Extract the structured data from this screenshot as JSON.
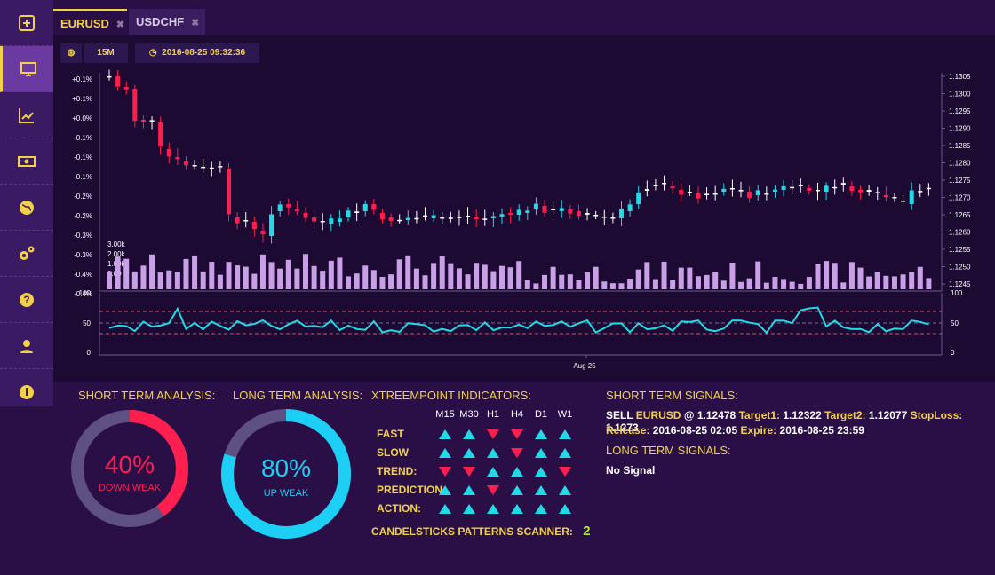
{
  "tabs": [
    {
      "label": "EURUSD",
      "close": "⌘"
    },
    {
      "label": "USDCHF",
      "close": "⌘"
    }
  ],
  "toolbar": {
    "timeframe": "15M",
    "datetime": "2016-08-25 09:32:36"
  },
  "sidebar": {
    "items": [
      "plus-square-icon",
      "monitor-icon",
      "line-chart-icon",
      "money-icon",
      "globe-icon",
      "gears-icon",
      "question-icon",
      "user-icon",
      "info-icon"
    ]
  },
  "chart_data": {
    "type": "candlestick",
    "left_axis_ticks": [
      "+0.1%",
      "+0.1%",
      "+0.0%",
      "-0.1%",
      "-0.1%",
      "-0.1%",
      "-0.2%",
      "-0.2%",
      "-0.3%",
      "-0.3%",
      "-0.4%",
      "-0.4%"
    ],
    "right_axis_ticks": [
      "1.1305",
      "1.1300",
      "1.1295",
      "1.1290",
      "1.1285",
      "1.1280",
      "1.1275",
      "1.1270",
      "1.1265",
      "1.1260",
      "1.1255",
      "1.1250",
      "1.1245"
    ],
    "volume_ticks": [
      "3.00k",
      "2.00k",
      "1.00k",
      "0.00"
    ],
    "oscillator_ticks": [
      "100",
      "50",
      "0"
    ],
    "x_label": "Aug 25",
    "colors": {
      "up": "#22d9e6",
      "down": "#ff1f4e",
      "volume": "#c9a0e8",
      "osc": "#22d9e6"
    }
  },
  "analysis": {
    "short_title": "SHORT TERM ANALYSIS:",
    "short_pct": "40%",
    "short_sub": "DOWN WEAK",
    "short_value": 0.4,
    "long_title": "LONG TERM ANALYSIS:",
    "long_pct": "80%",
    "long_sub": "UP WEAK",
    "long_value": 0.8
  },
  "indicators": {
    "title": "XTREEMPOINT INDICATORS:",
    "cols": [
      "M15",
      "M30",
      "H1",
      "H4",
      "D1",
      "W1"
    ],
    "rows": [
      {
        "label": "FAST",
        "dirs": [
          "up",
          "up",
          "down",
          "down",
          "up",
          "up"
        ]
      },
      {
        "label": "SLOW",
        "dirs": [
          "up",
          "up",
          "up",
          "down",
          "up",
          "up"
        ]
      },
      {
        "label": "TREND:",
        "dirs": [
          "down",
          "down",
          "up",
          "up",
          "up",
          "down"
        ]
      },
      {
        "label": "PREDICTION:",
        "dirs": [
          "up",
          "up",
          "down",
          "up",
          "up",
          "up"
        ]
      },
      {
        "label": "ACTION:",
        "dirs": [
          "up",
          "up",
          "up",
          "up",
          "up",
          "up"
        ]
      }
    ],
    "scanner_label": "CANDELSTICKS PATTERNS SCANNER:",
    "scanner_value": "2"
  },
  "signals": {
    "short_title": "SHORT TERM SIGNALS:",
    "line1": {
      "action": "SELL",
      "pair": "EURUSD",
      "at": "@ 1.12478",
      "t1_label": "Target1:",
      "t1": "1.12322",
      "t2_label": "Target2:",
      "t2": "1.12077",
      "sl_label": "StopLoss:",
      "sl": "1.1273"
    },
    "line2": {
      "release_label": "Release:",
      "release": "2016-08-25 02:05",
      "expire_label": "Expire:",
      "expire": "2016-08-25 23:59"
    },
    "long_title": "LONG TERM SIGNALS:",
    "long_value": "No Signal"
  }
}
